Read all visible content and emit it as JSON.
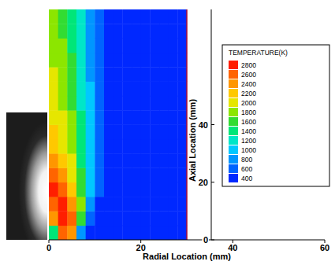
{
  "chart_data": {
    "type": "heatmap",
    "x_label": "Radial Location (mm)",
    "y_label": "Axial Location (mm)",
    "xlim": [
      0,
      60
    ],
    "xticks": [
      0,
      20,
      40,
      60
    ],
    "ylim": [
      0,
      80
    ],
    "yticks": [
      0,
      20,
      40
    ],
    "x_edges": [
      0,
      2,
      4,
      6,
      8,
      10,
      12,
      14,
      16,
      18,
      20,
      22,
      24,
      26,
      28,
      30
    ],
    "y_edges": [
      0,
      5,
      10,
      15,
      20,
      25,
      30,
      35,
      40,
      45,
      50,
      55,
      60,
      65,
      70,
      75,
      80
    ],
    "cells": [
      [
        1400,
        2600,
        2400,
        800,
        400,
        400,
        400,
        400,
        400,
        400,
        400,
        400,
        400,
        400,
        400
      ],
      [
        2400,
        2800,
        2600,
        1600,
        600,
        400,
        400,
        400,
        400,
        400,
        400,
        400,
        400,
        400,
        400
      ],
      [
        2600,
        2800,
        2400,
        1800,
        800,
        400,
        400,
        400,
        400,
        400,
        400,
        400,
        400,
        400,
        400
      ],
      [
        2800,
        2600,
        2200,
        1600,
        900,
        500,
        400,
        400,
        400,
        400,
        400,
        400,
        400,
        400,
        400
      ],
      [
        2600,
        2400,
        2000,
        1500,
        1000,
        500,
        400,
        400,
        400,
        400,
        400,
        400,
        400,
        400,
        400
      ],
      [
        2400,
        2200,
        1900,
        1400,
        1000,
        600,
        400,
        400,
        400,
        400,
        400,
        400,
        400,
        400,
        400
      ],
      [
        2200,
        2000,
        1800,
        1400,
        1000,
        600,
        400,
        400,
        400,
        400,
        400,
        400,
        400,
        400,
        400
      ],
      [
        2200,
        2000,
        1700,
        1300,
        900,
        600,
        400,
        400,
        400,
        400,
        400,
        400,
        400,
        400,
        400
      ],
      [
        2000,
        1900,
        1700,
        1300,
        900,
        600,
        400,
        400,
        400,
        400,
        400,
        400,
        400,
        400,
        400
      ],
      [
        2000,
        1800,
        1600,
        1200,
        900,
        600,
        400,
        400,
        400,
        400,
        400,
        400,
        400,
        400,
        400
      ],
      [
        1900,
        1800,
        1600,
        1200,
        900,
        600,
        400,
        400,
        400,
        400,
        400,
        400,
        400,
        400,
        400
      ],
      [
        1900,
        1700,
        1500,
        1200,
        800,
        600,
        400,
        400,
        400,
        400,
        400,
        400,
        400,
        400,
        400
      ],
      [
        1800,
        1700,
        1500,
        1100,
        800,
        600,
        400,
        400,
        400,
        400,
        400,
        400,
        400,
        400,
        400
      ],
      [
        1800,
        1700,
        1400,
        1100,
        800,
        600,
        400,
        400,
        400,
        400,
        400,
        400,
        400,
        400,
        400
      ],
      [
        1800,
        1600,
        1400,
        1100,
        800,
        600,
        400,
        400,
        400,
        400,
        400,
        400,
        400,
        400,
        400
      ],
      [
        1700,
        1600,
        1400,
        1100,
        800,
        600,
        400,
        400,
        400,
        400,
        400,
        400,
        400,
        400,
        400
      ]
    ],
    "colorbar": {
      "title": "TEMPERATURE(K)",
      "range": [
        400,
        2800
      ],
      "ticks": [
        400,
        600,
        800,
        1000,
        1200,
        1400,
        1600,
        1800,
        2000,
        2200,
        2400,
        2600,
        2800
      ],
      "colors": [
        "#0028ff",
        "#0064ff",
        "#0096ff",
        "#00c8ff",
        "#00e6c8",
        "#00e678",
        "#32dc32",
        "#8ce600",
        "#e6e600",
        "#ffc800",
        "#ff9600",
        "#ff6400",
        "#ff1e00"
      ]
    }
  }
}
